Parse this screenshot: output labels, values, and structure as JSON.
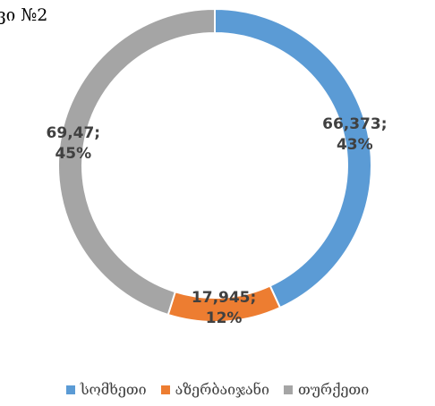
{
  "chart_data": {
    "type": "donut",
    "title": "ვი №2",
    "categories": [
      "სომხეთი",
      "აზერბაიჯანი",
      "თურქეთი"
    ],
    "values": [
      66.373,
      17.945,
      69.47
    ],
    "value_labels": [
      "66,373;\n43%",
      "17,945;\n12%",
      "69,47;\n45%"
    ],
    "colors": [
      "#5b9bd5",
      "#ed7d31",
      "#a5a5a5"
    ],
    "legend": "bottom"
  }
}
